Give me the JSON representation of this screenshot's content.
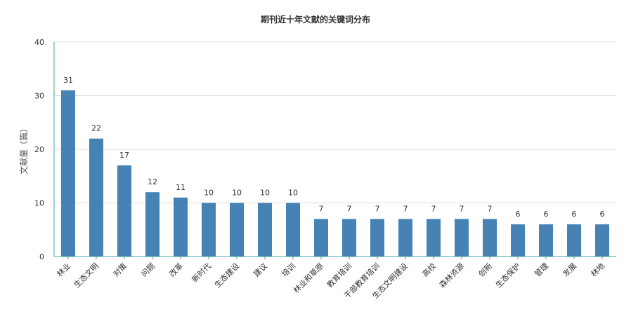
{
  "chart_data": {
    "type": "bar",
    "title": "期刊近十年文献的关键词分布",
    "xlabel": "",
    "ylabel": "文献量（篇）",
    "ylim": [
      0,
      40
    ],
    "yticks": [
      0,
      10,
      20,
      30,
      40
    ],
    "grid": true,
    "legend": "none",
    "categories": [
      "林业",
      "生态文明",
      "对策",
      "问题",
      "改革",
      "新时代",
      "生态建设",
      "建议",
      "培训",
      "林业和草原",
      "教育培训",
      "干部教育培训",
      "生态文明建设",
      "高校",
      "森林资源",
      "创新",
      "生态保护",
      "管理",
      "发展",
      "林地"
    ],
    "values": [
      31,
      22,
      17,
      12,
      11,
      10,
      10,
      10,
      10,
      7,
      7,
      7,
      7,
      7,
      7,
      7,
      6,
      6,
      6,
      6
    ],
    "colors": {
      "bar": "#4682b4",
      "axis": "#4aa3a0",
      "grid": "#dddddd"
    }
  }
}
